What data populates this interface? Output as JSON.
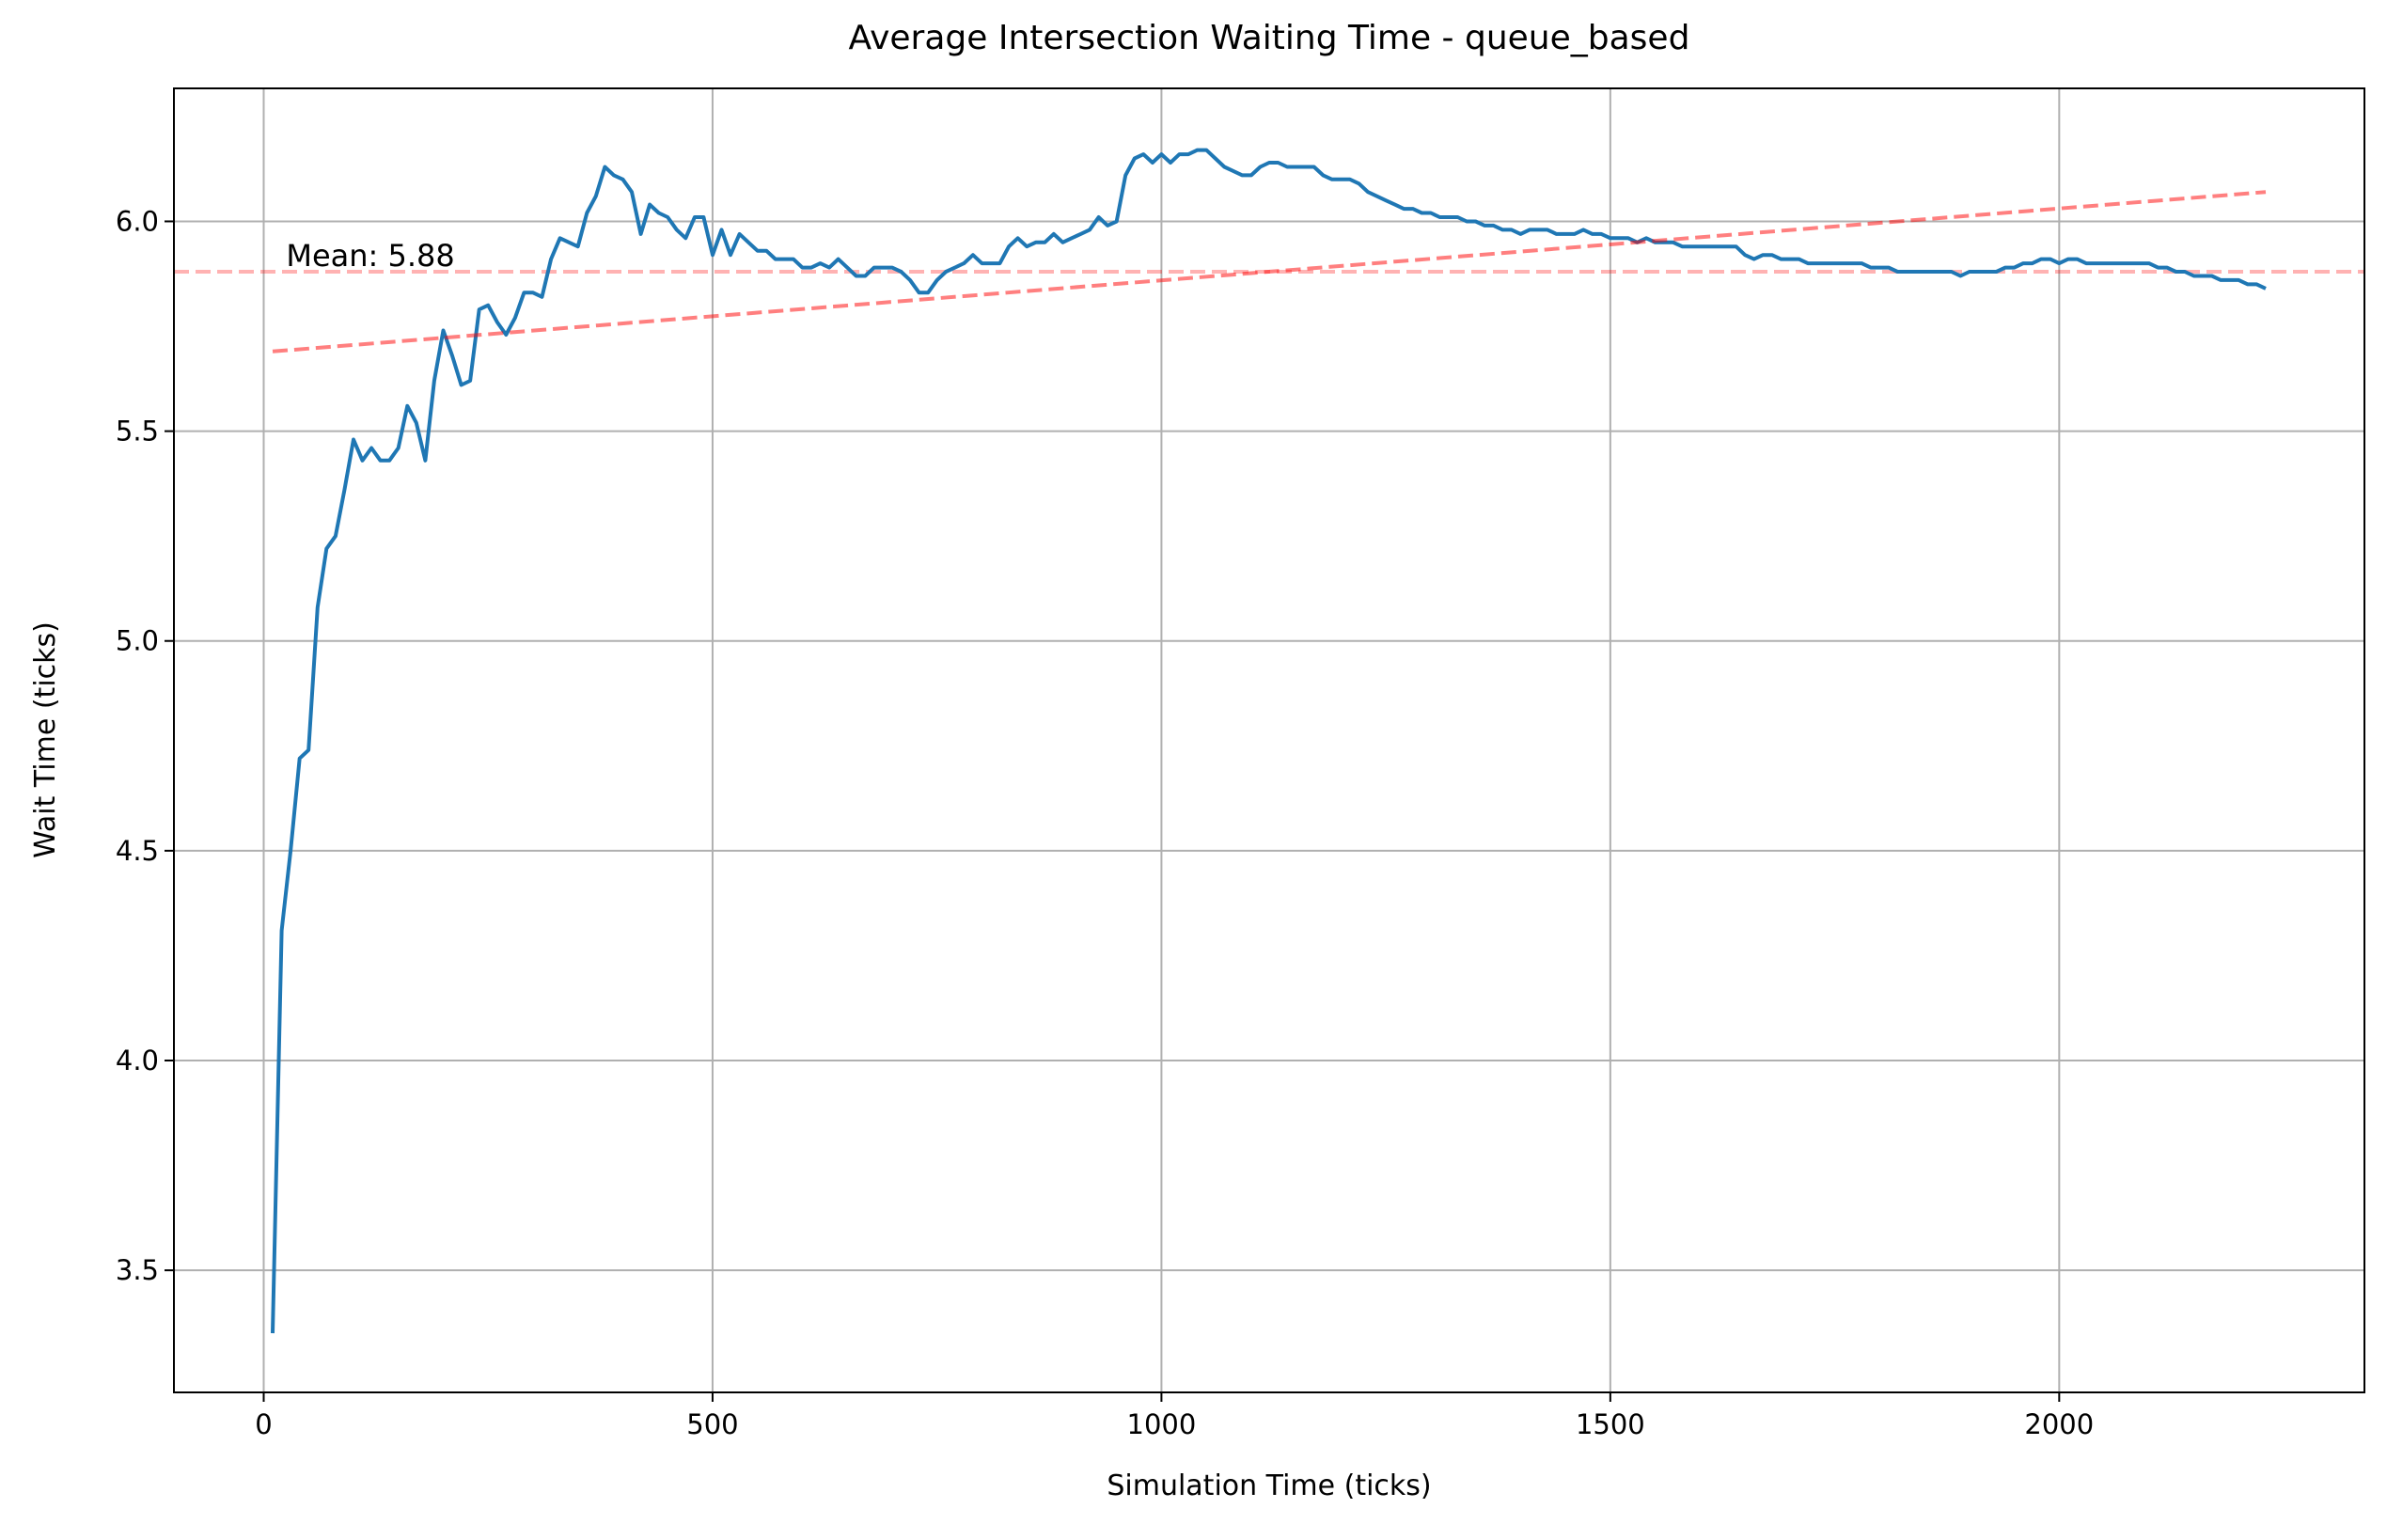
{
  "chart_data": {
    "type": "line",
    "title": "Average Intersection Waiting Time - queue_based",
    "x_label": "Simulation Time (ticks)",
    "y_label": "Wait Time (ticks)",
    "x": [
      10,
      20,
      30,
      40,
      50,
      60,
      70,
      80,
      90,
      100,
      110,
      120,
      130,
      140,
      150,
      160,
      170,
      180,
      190,
      200,
      210,
      220,
      230,
      240,
      250,
      260,
      270,
      280,
      290,
      300,
      310,
      320,
      330,
      340,
      350,
      360,
      370,
      380,
      390,
      400,
      410,
      420,
      430,
      440,
      450,
      460,
      470,
      480,
      490,
      500,
      510,
      520,
      530,
      540,
      550,
      560,
      570,
      580,
      590,
      600,
      610,
      620,
      630,
      640,
      650,
      660,
      670,
      680,
      690,
      700,
      710,
      720,
      730,
      740,
      750,
      760,
      770,
      780,
      790,
      800,
      810,
      820,
      830,
      840,
      850,
      860,
      870,
      880,
      890,
      900,
      910,
      920,
      930,
      940,
      950,
      960,
      970,
      980,
      990,
      1000,
      1010,
      1020,
      1030,
      1040,
      1050,
      1060,
      1070,
      1080,
      1090,
      1100,
      1110,
      1120,
      1130,
      1140,
      1150,
      1160,
      1170,
      1180,
      1190,
      1200,
      1210,
      1220,
      1230,
      1240,
      1250,
      1260,
      1270,
      1280,
      1290,
      1300,
      1310,
      1320,
      1330,
      1340,
      1350,
      1360,
      1370,
      1380,
      1390,
      1400,
      1410,
      1420,
      1430,
      1440,
      1450,
      1460,
      1470,
      1480,
      1490,
      1500,
      1510,
      1520,
      1530,
      1540,
      1550,
      1560,
      1570,
      1580,
      1590,
      1600,
      1610,
      1620,
      1630,
      1640,
      1650,
      1660,
      1670,
      1680,
      1690,
      1700,
      1710,
      1720,
      1730,
      1740,
      1750,
      1760,
      1770,
      1780,
      1790,
      1800,
      1810,
      1820,
      1830,
      1840,
      1850,
      1860,
      1870,
      1880,
      1890,
      1900,
      1910,
      1920,
      1930,
      1940,
      1950,
      1960,
      1970,
      1980,
      1990,
      2000,
      2010,
      2020,
      2030,
      2040,
      2050,
      2060,
      2070,
      2080,
      2090,
      2100,
      2110,
      2120,
      2130,
      2140,
      2150,
      2160,
      2170,
      2180,
      2190,
      2200,
      2210,
      2220,
      2230
    ],
    "series": [
      {
        "color": "#1f77b4",
        "values": [
          3.35,
          4.31,
          4.5,
          4.72,
          4.74,
          5.08,
          5.22,
          5.25,
          5.36,
          5.48,
          5.43,
          5.46,
          5.43,
          5.43,
          5.46,
          5.56,
          5.52,
          5.43,
          5.62,
          5.74,
          5.68,
          5.61,
          5.62,
          5.79,
          5.8,
          5.76,
          5.73,
          5.77,
          5.83,
          5.83,
          5.82,
          5.91,
          5.96,
          5.95,
          5.94,
          6.02,
          6.06,
          6.13,
          6.11,
          6.1,
          6.07,
          5.97,
          6.04,
          6.02,
          6.01,
          5.98,
          5.96,
          6.01,
          6.01,
          5.92,
          5.98,
          5.92,
          5.97,
          5.95,
          5.93,
          5.93,
          5.91,
          5.91,
          5.91,
          5.89,
          5.89,
          5.9,
          5.89,
          5.91,
          5.89,
          5.87,
          5.87,
          5.89,
          5.89,
          5.89,
          5.88,
          5.86,
          5.83,
          5.83,
          5.86,
          5.88,
          5.89,
          5.9,
          5.92,
          5.9,
          5.9,
          5.9,
          5.94,
          5.96,
          5.94,
          5.95,
          5.95,
          5.97,
          5.95,
          5.96,
          5.97,
          5.98,
          6.01,
          5.99,
          6.0,
          6.11,
          6.15,
          6.16,
          6.14,
          6.16,
          6.14,
          6.16,
          6.16,
          6.17,
          6.17,
          6.15,
          6.13,
          6.12,
          6.11,
          6.11,
          6.13,
          6.14,
          6.14,
          6.13,
          6.13,
          6.13,
          6.13,
          6.11,
          6.1,
          6.1,
          6.1,
          6.09,
          6.07,
          6.06,
          6.05,
          6.04,
          6.03,
          6.03,
          6.02,
          6.02,
          6.01,
          6.01,
          6.01,
          6.0,
          6.0,
          5.99,
          5.99,
          5.98,
          5.98,
          5.97,
          5.98,
          5.98,
          5.98,
          5.97,
          5.97,
          5.97,
          5.98,
          5.97,
          5.97,
          5.96,
          5.96,
          5.96,
          5.95,
          5.96,
          5.95,
          5.95,
          5.95,
          5.94,
          5.94,
          5.94,
          5.94,
          5.94,
          5.94,
          5.94,
          5.92,
          5.91,
          5.92,
          5.92,
          5.91,
          5.91,
          5.91,
          5.9,
          5.9,
          5.9,
          5.9,
          5.9,
          5.9,
          5.9,
          5.89,
          5.89,
          5.89,
          5.88,
          5.88,
          5.88,
          5.88,
          5.88,
          5.88,
          5.88,
          5.87,
          5.88,
          5.88,
          5.88,
          5.88,
          5.89,
          5.89,
          5.9,
          5.9,
          5.91,
          5.91,
          5.9,
          5.91,
          5.91,
          5.9,
          5.9,
          5.9,
          5.9,
          5.9,
          5.9,
          5.9,
          5.9,
          5.89,
          5.89,
          5.88,
          5.88,
          5.87,
          5.87,
          5.87,
          5.86,
          5.86,
          5.86,
          5.85,
          5.85,
          5.84
        ]
      }
    ],
    "mean_line": {
      "value": 5.88,
      "label": "Mean: 5.88",
      "color": "#ff0000"
    },
    "trend": {
      "x": [
        10,
        2230
      ],
      "values": [
        5.69,
        6.07
      ],
      "color": "#ff0000"
    },
    "xlim": [
      -100,
      2340
    ],
    "ylim": [
      3.209,
      6.317
    ],
    "xticks": [
      0,
      500,
      1000,
      1500,
      2000
    ],
    "yticks": [
      3.5,
      {
        "value": 4,
        "label": "4.0"
      },
      4.5,
      {
        "value": 5,
        "label": "5.0"
      },
      5.5,
      {
        "value": 6,
        "label": "6.0"
      }
    ],
    "grid": true
  }
}
